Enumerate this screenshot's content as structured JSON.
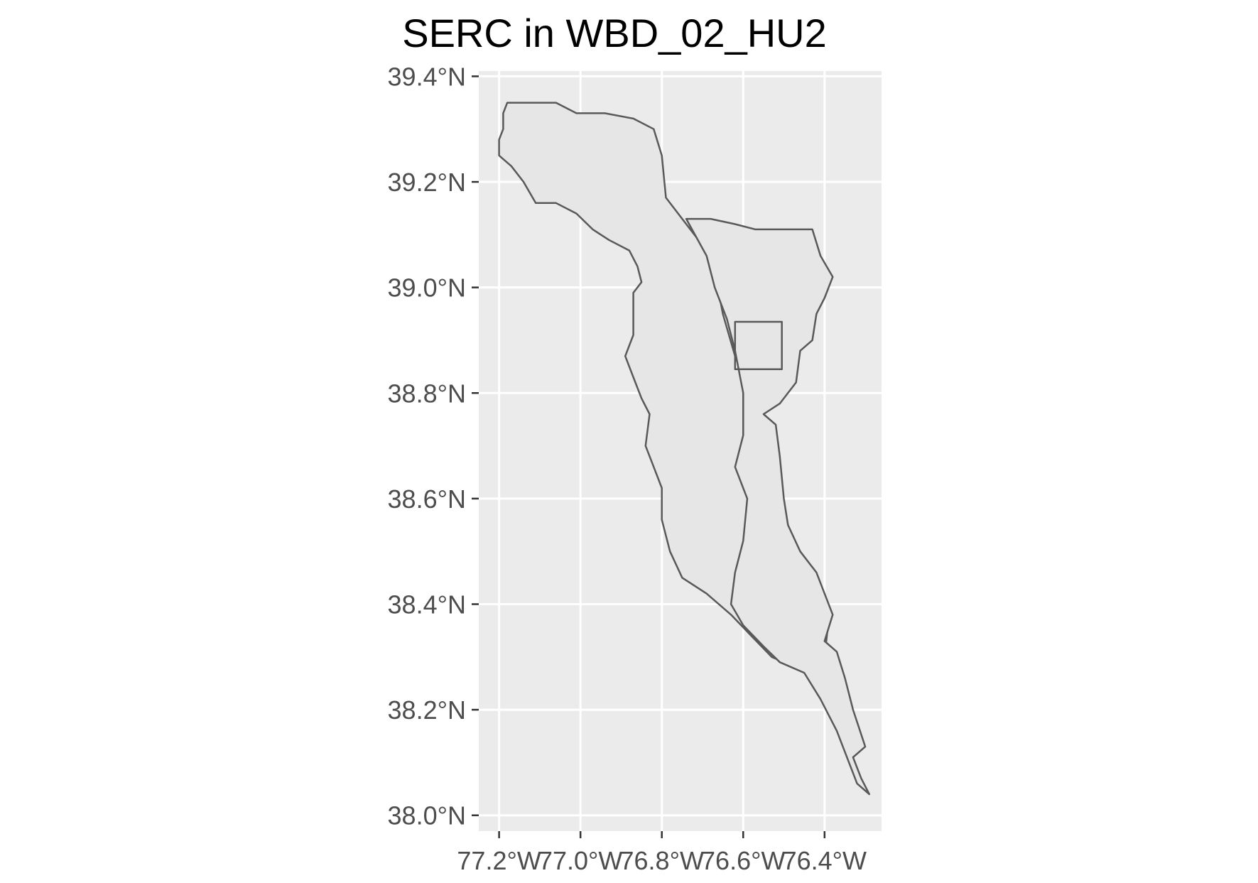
{
  "title": "SERC in WBD_02_HU2",
  "axis": {
    "x_ticks": [
      {
        "value": -77.2,
        "label": "77.2°W"
      },
      {
        "value": -77.0,
        "label": "77.0°W"
      },
      {
        "value": -76.8,
        "label": "76.8°W"
      },
      {
        "value": -76.6,
        "label": "76.6°W"
      },
      {
        "value": -76.4,
        "label": "76.4°W"
      }
    ],
    "y_ticks": [
      {
        "value": 38.0,
        "label": "38.0°N"
      },
      {
        "value": 38.2,
        "label": "38.2°N"
      },
      {
        "value": 38.4,
        "label": "38.4°N"
      },
      {
        "value": 38.6,
        "label": "38.6°N"
      },
      {
        "value": 38.8,
        "label": "38.8°N"
      },
      {
        "value": 39.0,
        "label": "39.0°N"
      },
      {
        "value": 39.2,
        "label": "39.2°N"
      },
      {
        "value": 39.4,
        "label": "39.4°N"
      }
    ],
    "xlim": [
      -77.25,
      -76.26
    ],
    "ylim": [
      37.97,
      39.41
    ]
  },
  "colors": {
    "panel": "#ebebeb",
    "grid": "#ffffff",
    "fill": "#e6e6e6",
    "stroke": "#595959"
  },
  "chart_data": {
    "type": "map",
    "grid": true,
    "features": [
      {
        "id": "watershed-west",
        "coords": [
          [
            -77.19,
            39.3
          ],
          [
            -77.2,
            39.28
          ],
          [
            -77.2,
            39.25
          ],
          [
            -77.17,
            39.23
          ],
          [
            -77.14,
            39.2
          ],
          [
            -77.11,
            39.16
          ],
          [
            -77.06,
            39.16
          ],
          [
            -77.01,
            39.14
          ],
          [
            -76.97,
            39.11
          ],
          [
            -76.93,
            39.09
          ],
          [
            -76.88,
            39.07
          ],
          [
            -76.86,
            39.04
          ],
          [
            -76.85,
            39.01
          ],
          [
            -76.87,
            38.99
          ],
          [
            -76.87,
            38.95
          ],
          [
            -76.87,
            38.91
          ],
          [
            -76.89,
            38.87
          ],
          [
            -76.87,
            38.83
          ],
          [
            -76.85,
            38.79
          ],
          [
            -76.83,
            38.76
          ],
          [
            -76.84,
            38.7
          ],
          [
            -76.82,
            38.66
          ],
          [
            -76.8,
            38.62
          ],
          [
            -76.8,
            38.56
          ],
          [
            -76.78,
            38.5
          ],
          [
            -76.75,
            38.45
          ],
          [
            -76.69,
            38.42
          ],
          [
            -76.63,
            38.38
          ],
          [
            -76.58,
            38.34
          ],
          [
            -76.53,
            38.3
          ],
          [
            -76.47,
            38.28
          ],
          [
            -76.43,
            38.27
          ],
          [
            -76.4,
            38.3
          ],
          [
            -76.39,
            38.37
          ],
          [
            -76.42,
            38.42
          ],
          [
            -76.47,
            38.46
          ],
          [
            -76.53,
            38.49
          ],
          [
            -76.57,
            38.52
          ],
          [
            -76.59,
            38.55
          ],
          [
            -76.57,
            38.6
          ],
          [
            -76.59,
            38.66
          ],
          [
            -76.6,
            38.72
          ],
          [
            -76.6,
            38.78
          ],
          [
            -76.6,
            38.83
          ],
          [
            -76.62,
            38.87
          ],
          [
            -76.65,
            38.95
          ],
          [
            -76.67,
            39.03
          ],
          [
            -76.7,
            39.08
          ],
          [
            -76.74,
            39.12
          ],
          [
            -76.79,
            39.17
          ],
          [
            -76.8,
            39.25
          ],
          [
            -76.82,
            39.3
          ],
          [
            -76.87,
            39.32
          ],
          [
            -76.94,
            39.33
          ],
          [
            -77.01,
            39.33
          ],
          [
            -77.06,
            39.35
          ],
          [
            -77.13,
            39.35
          ],
          [
            -77.18,
            39.35
          ],
          [
            -77.19,
            39.33
          ]
        ]
      },
      {
        "id": "watershed-east",
        "coords": [
          [
            -76.74,
            39.13
          ],
          [
            -76.68,
            39.13
          ],
          [
            -76.62,
            39.12
          ],
          [
            -76.57,
            39.11
          ],
          [
            -76.5,
            39.11
          ],
          [
            -76.43,
            39.11
          ],
          [
            -76.41,
            39.06
          ],
          [
            -76.38,
            39.02
          ],
          [
            -76.4,
            38.98
          ],
          [
            -76.42,
            38.95
          ],
          [
            -76.43,
            38.9
          ],
          [
            -76.46,
            38.88
          ],
          [
            -76.47,
            38.82
          ],
          [
            -76.51,
            38.78
          ],
          [
            -76.55,
            38.76
          ],
          [
            -76.52,
            38.74
          ],
          [
            -76.51,
            38.68
          ],
          [
            -76.5,
            38.6
          ],
          [
            -76.49,
            38.55
          ],
          [
            -76.46,
            38.5
          ],
          [
            -76.42,
            38.46
          ],
          [
            -76.38,
            38.38
          ],
          [
            -76.4,
            38.33
          ],
          [
            -76.37,
            38.31
          ],
          [
            -76.35,
            38.26
          ],
          [
            -76.33,
            38.2
          ],
          [
            -76.3,
            38.13
          ],
          [
            -76.33,
            38.11
          ],
          [
            -76.31,
            38.07
          ],
          [
            -76.29,
            38.04
          ],
          [
            -76.32,
            38.06
          ],
          [
            -76.34,
            38.1
          ],
          [
            -76.37,
            38.16
          ],
          [
            -76.41,
            38.22
          ],
          [
            -76.45,
            38.27
          ],
          [
            -76.51,
            38.29
          ],
          [
            -76.55,
            38.32
          ],
          [
            -76.6,
            38.36
          ],
          [
            -76.63,
            38.4
          ],
          [
            -76.62,
            38.46
          ],
          [
            -76.6,
            38.52
          ],
          [
            -76.59,
            38.6
          ],
          [
            -76.62,
            38.66
          ],
          [
            -76.6,
            38.72
          ],
          [
            -76.6,
            38.8
          ],
          [
            -76.62,
            38.88
          ],
          [
            -76.64,
            38.94
          ],
          [
            -76.67,
            39.0
          ],
          [
            -76.69,
            39.06
          ]
        ]
      },
      {
        "id": "serc-site",
        "coords": [
          [
            -76.62,
            38.935
          ],
          [
            -76.505,
            38.935
          ],
          [
            -76.505,
            38.845
          ],
          [
            -76.62,
            38.845
          ]
        ]
      }
    ]
  }
}
